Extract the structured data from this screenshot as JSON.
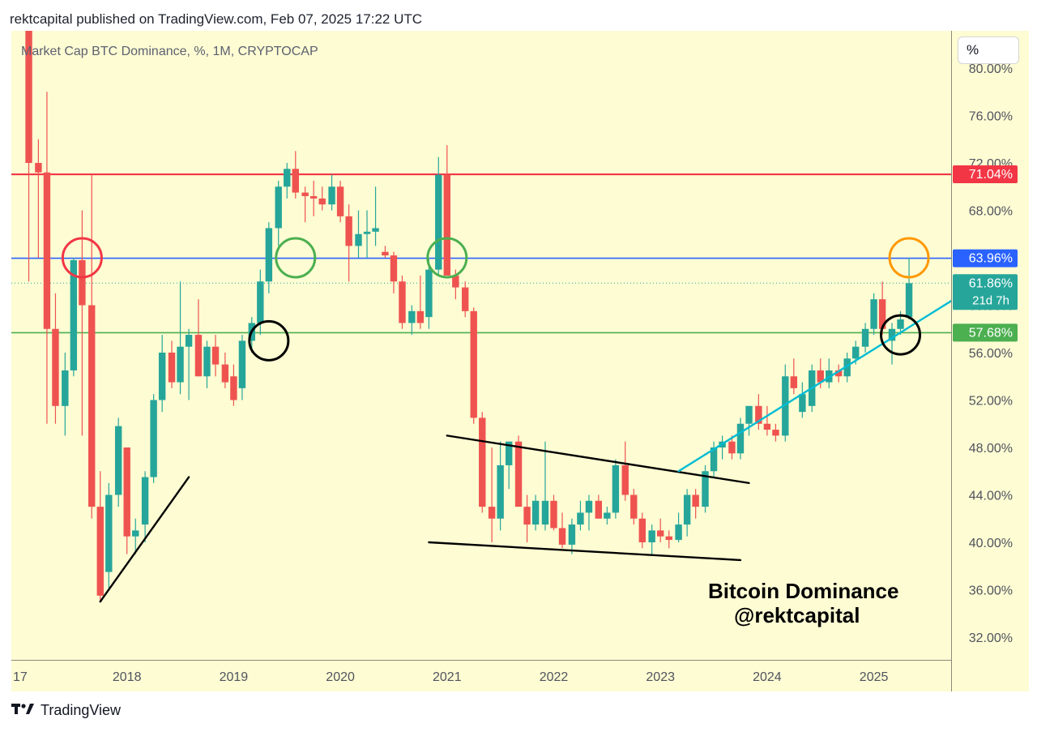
{
  "header": {
    "published_line": "rektcapital published on TradingView.com, Feb 07, 2025 17:22 UTC"
  },
  "chart_header": {
    "ticker_line": "Market Cap BTC Dominance, %, 1M, CRYPTOCAP",
    "unit_button": "%"
  },
  "footer": {
    "logo_icon": "tradingview-logo-icon",
    "brand": "TradingView"
  },
  "colors": {
    "up": "#26a69a",
    "down": "#ef5350",
    "background": "#fdfcd3",
    "resistance": "#f23645",
    "blue_level": "#2962ff",
    "green_level": "#4caf50",
    "trendline": "#00bcd4"
  },
  "chart_data": {
    "type": "candlestick",
    "timeframe": "1M",
    "ylim": [
      30,
      80
    ],
    "yticks": [
      32,
      36,
      40,
      44,
      48,
      52,
      56,
      60,
      64,
      68,
      72,
      76,
      80
    ],
    "ytick_labels": [
      "32.00%",
      "36.00%",
      "40.00%",
      "44.00%",
      "48.00%",
      "52.00%",
      "56.00%",
      "60.00%",
      "64.00%",
      "68.00%",
      "72.00%",
      "76.00%",
      "80.00%"
    ],
    "xticks": [
      "17",
      "2018",
      "2019",
      "2020",
      "2021",
      "2022",
      "2023",
      "2024",
      "2025"
    ],
    "price_tags": [
      {
        "label": "71.04%",
        "value": 71.04,
        "color": "#f23645"
      },
      {
        "label": "63.96%",
        "value": 63.96,
        "color": "#2962ff"
      },
      {
        "label": "61.86%",
        "sub": "21d 7h",
        "value": 61.86,
        "color": "#26a69a"
      },
      {
        "label": "57.68%",
        "value": 57.68,
        "color": "#4caf50"
      }
    ],
    "horizontal_levels": [
      {
        "value": 71.04,
        "color": "#f23645"
      },
      {
        "value": 63.96,
        "color": "#2962ff"
      },
      {
        "value": 57.68,
        "color": "#4caf50"
      }
    ],
    "annotation": [
      "Bitcoin Dominance",
      "@rektcapital"
    ],
    "candles": [
      {
        "t": 2017.08,
        "o": 86.0,
        "h": 90.0,
        "l": 62.0,
        "c": 72.0
      },
      {
        "t": 2017.17,
        "o": 72.0,
        "h": 74.0,
        "l": 64.0,
        "c": 71.2
      },
      {
        "t": 2017.25,
        "o": 71.2,
        "h": 78.0,
        "l": 50.0,
        "c": 58.0
      },
      {
        "t": 2017.33,
        "o": 58.0,
        "h": 61.0,
        "l": 50.0,
        "c": 51.5
      },
      {
        "t": 2017.42,
        "o": 51.5,
        "h": 56.0,
        "l": 49.0,
        "c": 54.5
      },
      {
        "t": 2017.5,
        "o": 54.5,
        "h": 64.0,
        "l": 54.0,
        "c": 63.8
      },
      {
        "t": 2017.58,
        "o": 63.8,
        "h": 68.0,
        "l": 49.0,
        "c": 60.0
      },
      {
        "t": 2017.67,
        "o": 60.0,
        "h": 71.0,
        "l": 42.0,
        "c": 43.0
      },
      {
        "t": 2017.75,
        "o": 43.0,
        "h": 46.0,
        "l": 35.0,
        "c": 35.5
      },
      {
        "t": 2017.83,
        "o": 37.5,
        "h": 45.0,
        "l": 36.0,
        "c": 44.0
      },
      {
        "t": 2017.92,
        "o": 44.0,
        "h": 50.5,
        "l": 43.0,
        "c": 49.8
      },
      {
        "t": 2018.0,
        "o": 48.0,
        "h": 48.0,
        "l": 39.0,
        "c": 40.5
      },
      {
        "t": 2018.08,
        "o": 40.5,
        "h": 42.0,
        "l": 39.0,
        "c": 41.0
      },
      {
        "t": 2018.17,
        "o": 41.5,
        "h": 46.0,
        "l": 40.0,
        "c": 45.5
      },
      {
        "t": 2018.25,
        "o": 45.5,
        "h": 52.5,
        "l": 45.0,
        "c": 52.0
      },
      {
        "t": 2018.33,
        "o": 52.0,
        "h": 57.5,
        "l": 51.0,
        "c": 56.0
      },
      {
        "t": 2018.42,
        "o": 56.0,
        "h": 57.0,
        "l": 53.0,
        "c": 53.5
      },
      {
        "t": 2018.5,
        "o": 53.5,
        "h": 62.0,
        "l": 52.5,
        "c": 56.5
      },
      {
        "t": 2018.58,
        "o": 56.5,
        "h": 58.0,
        "l": 52.0,
        "c": 57.5
      },
      {
        "t": 2018.67,
        "o": 57.5,
        "h": 60.5,
        "l": 54.0,
        "c": 54.0
      },
      {
        "t": 2018.75,
        "o": 54.0,
        "h": 57.0,
        "l": 53.0,
        "c": 56.5
      },
      {
        "t": 2018.83,
        "o": 56.5,
        "h": 57.5,
        "l": 54.0,
        "c": 55.0
      },
      {
        "t": 2018.92,
        "o": 55.0,
        "h": 56.0,
        "l": 53.0,
        "c": 53.5
      },
      {
        "t": 2019.0,
        "o": 54.0,
        "h": 55.0,
        "l": 51.5,
        "c": 52.0
      },
      {
        "t": 2019.08,
        "o": 53.0,
        "h": 57.5,
        "l": 52.0,
        "c": 57.0
      },
      {
        "t": 2019.17,
        "o": 57.0,
        "h": 59.0,
        "l": 56.0,
        "c": 58.5
      },
      {
        "t": 2019.25,
        "o": 58.5,
        "h": 63.0,
        "l": 57.5,
        "c": 62.0
      },
      {
        "t": 2019.33,
        "o": 62.0,
        "h": 67.0,
        "l": 61.0,
        "c": 66.5
      },
      {
        "t": 2019.42,
        "o": 66.5,
        "h": 70.5,
        "l": 65.0,
        "c": 70.0
      },
      {
        "t": 2019.5,
        "o": 70.0,
        "h": 72.0,
        "l": 69.0,
        "c": 71.5
      },
      {
        "t": 2019.58,
        "o": 71.5,
        "h": 73.0,
        "l": 69.0,
        "c": 69.5
      },
      {
        "t": 2019.67,
        "o": 69.5,
        "h": 70.0,
        "l": 67.0,
        "c": 69.2
      },
      {
        "t": 2019.75,
        "o": 69.2,
        "h": 70.5,
        "l": 67.5,
        "c": 69.0
      },
      {
        "t": 2019.83,
        "o": 69.0,
        "h": 70.0,
        "l": 68.0,
        "c": 68.5
      },
      {
        "t": 2019.92,
        "o": 68.5,
        "h": 71.0,
        "l": 68.0,
        "c": 70.0
      },
      {
        "t": 2020.0,
        "o": 70.0,
        "h": 70.5,
        "l": 67.0,
        "c": 67.5
      },
      {
        "t": 2020.08,
        "o": 67.5,
        "h": 68.5,
        "l": 62.0,
        "c": 65.0
      },
      {
        "t": 2020.17,
        "o": 65.0,
        "h": 68.0,
        "l": 64.0,
        "c": 66.0
      },
      {
        "t": 2020.25,
        "o": 66.0,
        "h": 68.0,
        "l": 64.0,
        "c": 66.2
      },
      {
        "t": 2020.33,
        "o": 66.2,
        "h": 70.0,
        "l": 65.0,
        "c": 66.5
      },
      {
        "t": 2020.42,
        "o": 64.5,
        "h": 65.0,
        "l": 64.0,
        "c": 64.2
      },
      {
        "t": 2020.5,
        "o": 64.2,
        "h": 64.5,
        "l": 61.0,
        "c": 62.0
      },
      {
        "t": 2020.58,
        "o": 62.0,
        "h": 62.5,
        "l": 58.0,
        "c": 58.5
      },
      {
        "t": 2020.67,
        "o": 58.5,
        "h": 60.0,
        "l": 57.5,
        "c": 59.5
      },
      {
        "t": 2020.75,
        "o": 59.5,
        "h": 62.5,
        "l": 58.0,
        "c": 58.5
      },
      {
        "t": 2020.83,
        "o": 59.0,
        "h": 64.0,
        "l": 58.0,
        "c": 63.0
      },
      {
        "t": 2020.92,
        "o": 63.0,
        "h": 72.5,
        "l": 62.5,
        "c": 71.0
      },
      {
        "t": 2021.0,
        "o": 71.0,
        "h": 73.5,
        "l": 62.5,
        "c": 62.5
      },
      {
        "t": 2021.08,
        "o": 62.5,
        "h": 63.0,
        "l": 60.5,
        "c": 61.5
      },
      {
        "t": 2021.17,
        "o": 61.5,
        "h": 62.0,
        "l": 59.0,
        "c": 59.5
      },
      {
        "t": 2021.25,
        "o": 59.5,
        "h": 59.8,
        "l": 50.0,
        "c": 50.5
      },
      {
        "t": 2021.33,
        "o": 50.5,
        "h": 51.0,
        "l": 42.5,
        "c": 43.0
      },
      {
        "t": 2021.42,
        "o": 43.0,
        "h": 48.0,
        "l": 40.0,
        "c": 42.0
      },
      {
        "t": 2021.5,
        "o": 42.0,
        "h": 48.5,
        "l": 41.0,
        "c": 46.5
      },
      {
        "t": 2021.58,
        "o": 46.5,
        "h": 48.5,
        "l": 44.5,
        "c": 48.5
      },
      {
        "t": 2021.67,
        "o": 48.5,
        "h": 49.0,
        "l": 43.0,
        "c": 43.0
      },
      {
        "t": 2021.75,
        "o": 43.0,
        "h": 44.0,
        "l": 40.0,
        "c": 41.5
      },
      {
        "t": 2021.83,
        "o": 41.5,
        "h": 44.0,
        "l": 41.0,
        "c": 43.5
      },
      {
        "t": 2021.92,
        "o": 41.5,
        "h": 48.5,
        "l": 41.0,
        "c": 43.5
      },
      {
        "t": 2022.0,
        "o": 43.5,
        "h": 44.0,
        "l": 41.0,
        "c": 41.2
      },
      {
        "t": 2022.08,
        "o": 41.2,
        "h": 42.5,
        "l": 39.5,
        "c": 39.8
      },
      {
        "t": 2022.17,
        "o": 39.8,
        "h": 42.0,
        "l": 39.0,
        "c": 41.5
      },
      {
        "t": 2022.25,
        "o": 41.5,
        "h": 43.5,
        "l": 41.0,
        "c": 42.5
      },
      {
        "t": 2022.33,
        "o": 42.5,
        "h": 44.0,
        "l": 41.0,
        "c": 43.5
      },
      {
        "t": 2022.42,
        "o": 43.5,
        "h": 44.0,
        "l": 42.0,
        "c": 42.0
      },
      {
        "t": 2022.5,
        "o": 42.0,
        "h": 43.0,
        "l": 41.5,
        "c": 42.5
      },
      {
        "t": 2022.58,
        "o": 42.5,
        "h": 47.0,
        "l": 42.0,
        "c": 46.5
      },
      {
        "t": 2022.67,
        "o": 46.5,
        "h": 48.5,
        "l": 43.5,
        "c": 44.0
      },
      {
        "t": 2022.75,
        "o": 44.0,
        "h": 44.5,
        "l": 41.5,
        "c": 42.0
      },
      {
        "t": 2022.83,
        "o": 42.0,
        "h": 42.5,
        "l": 39.5,
        "c": 40.0
      },
      {
        "t": 2022.92,
        "o": 40.0,
        "h": 41.5,
        "l": 39.0,
        "c": 41.0
      },
      {
        "t": 2023.0,
        "o": 41.0,
        "h": 42.0,
        "l": 40.0,
        "c": 40.5
      },
      {
        "t": 2023.08,
        "o": 40.5,
        "h": 41.0,
        "l": 39.5,
        "c": 40.2
      },
      {
        "t": 2023.17,
        "o": 40.2,
        "h": 42.5,
        "l": 40.0,
        "c": 41.5
      },
      {
        "t": 2023.25,
        "o": 41.5,
        "h": 44.5,
        "l": 40.5,
        "c": 44.0
      },
      {
        "t": 2023.33,
        "o": 44.0,
        "h": 44.5,
        "l": 42.0,
        "c": 43.0
      },
      {
        "t": 2023.42,
        "o": 43.0,
        "h": 46.5,
        "l": 42.5,
        "c": 46.0
      },
      {
        "t": 2023.5,
        "o": 46.0,
        "h": 48.5,
        "l": 45.5,
        "c": 48.0
      },
      {
        "t": 2023.58,
        "o": 48.0,
        "h": 49.0,
        "l": 47.0,
        "c": 48.5
      },
      {
        "t": 2023.67,
        "o": 48.5,
        "h": 49.0,
        "l": 47.0,
        "c": 47.5
      },
      {
        "t": 2023.75,
        "o": 47.5,
        "h": 50.5,
        "l": 47.0,
        "c": 50.0
      },
      {
        "t": 2023.83,
        "o": 50.0,
        "h": 51.5,
        "l": 49.0,
        "c": 51.5
      },
      {
        "t": 2023.92,
        "o": 51.5,
        "h": 52.5,
        "l": 49.5,
        "c": 50.0
      },
      {
        "t": 2024.0,
        "o": 50.0,
        "h": 51.5,
        "l": 49.0,
        "c": 49.5
      },
      {
        "t": 2024.08,
        "o": 49.5,
        "h": 50.0,
        "l": 48.5,
        "c": 49.0
      },
      {
        "t": 2024.17,
        "o": 49.0,
        "h": 55.0,
        "l": 48.5,
        "c": 54.0
      },
      {
        "t": 2024.25,
        "o": 54.0,
        "h": 55.5,
        "l": 52.5,
        "c": 53.0
      },
      {
        "t": 2024.33,
        "o": 51.0,
        "h": 53.5,
        "l": 50.5,
        "c": 52.5
      },
      {
        "t": 2024.42,
        "o": 51.5,
        "h": 55.0,
        "l": 51.0,
        "c": 54.5
      },
      {
        "t": 2024.5,
        "o": 54.5,
        "h": 55.5,
        "l": 53.0,
        "c": 53.5
      },
      {
        "t": 2024.58,
        "o": 53.5,
        "h": 55.5,
        "l": 53.0,
        "c": 54.5
      },
      {
        "t": 2024.67,
        "o": 54.5,
        "h": 55.0,
        "l": 53.5,
        "c": 54.0
      },
      {
        "t": 2024.75,
        "o": 54.0,
        "h": 56.0,
        "l": 53.5,
        "c": 55.5
      },
      {
        "t": 2024.83,
        "o": 55.5,
        "h": 57.0,
        "l": 55.0,
        "c": 56.5
      },
      {
        "t": 2024.92,
        "o": 56.5,
        "h": 58.5,
        "l": 56.0,
        "c": 58.0
      },
      {
        "t": 2025.0,
        "o": 58.0,
        "h": 61.0,
        "l": 57.5,
        "c": 60.5
      },
      {
        "t": 2025.08,
        "o": 60.5,
        "h": 62.0,
        "l": 57.5,
        "c": 58.0
      },
      {
        "t": 2025.17,
        "o": 57.0,
        "h": 58.5,
        "l": 55.0,
        "c": 58.0
      },
      {
        "t": 2025.25,
        "o": 58.0,
        "h": 59.5,
        "l": 57.5,
        "c": 58.8
      },
      {
        "t": 2025.33,
        "o": 59.0,
        "h": 64.0,
        "l": 58.8,
        "c": 61.86
      }
    ],
    "trendlines": [
      {
        "color": "#000000",
        "from": {
          "t": 2017.75,
          "v": 35.0
        },
        "to": {
          "t": 2018.58,
          "v": 45.5
        }
      },
      {
        "color": "#000000",
        "from": {
          "t": 2021.0,
          "v": 49.0
        },
        "to": {
          "t": 2023.83,
          "v": 45.0
        }
      },
      {
        "color": "#000000",
        "from": {
          "t": 2020.83,
          "v": 40.0
        },
        "to": {
          "t": 2023.75,
          "v": 38.5
        }
      },
      {
        "color": "#00bcd4",
        "from": {
          "t": 2023.17,
          "v": 46.0
        },
        "to": {
          "t": 2025.75,
          "v": 60.5
        }
      }
    ],
    "circles": [
      {
        "t": 2017.58,
        "v": 64.0,
        "color": "#f23645"
      },
      {
        "t": 2019.58,
        "v": 64.0,
        "color": "#4caf50"
      },
      {
        "t": 2021.0,
        "v": 64.0,
        "color": "#4caf50"
      },
      {
        "t": 2019.33,
        "v": 57.0,
        "color": "#000000"
      },
      {
        "t": 2025.25,
        "v": 57.5,
        "color": "#000000"
      },
      {
        "t": 2025.33,
        "v": 64.0,
        "color": "#ff9800"
      }
    ]
  }
}
